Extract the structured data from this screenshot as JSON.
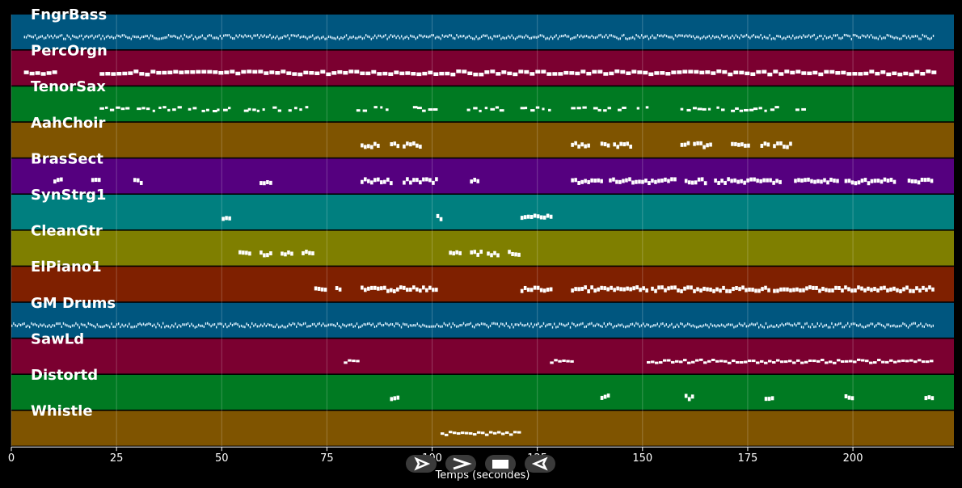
{
  "chart_data": {
    "type": "piano-roll",
    "xlabel": "Temps (secondes)",
    "xlim": [
      0,
      224
    ],
    "x_ticks": [
      0,
      25,
      50,
      75,
      100,
      125,
      150,
      175,
      200
    ],
    "grid": true,
    "tracks": [
      {
        "name": "FngrBass",
        "color": "#00567f",
        "notes": "dense",
        "segments": [
          [
            3,
            219
          ]
        ]
      },
      {
        "name": "PercOrgn",
        "color": "#7b0030",
        "notes": "long",
        "segments": [
          [
            3,
            10
          ],
          [
            21,
            219
          ]
        ]
      },
      {
        "name": "TenorSax",
        "color": "#007a22",
        "notes": "sparse",
        "segments": [
          [
            21,
            71
          ],
          [
            82,
            101
          ],
          [
            103,
            128
          ],
          [
            133,
            151
          ],
          [
            159,
            189
          ]
        ]
      },
      {
        "name": "AahChoir",
        "color": "#7f5400",
        "notes": "chunk",
        "segments": [
          [
            83,
            87
          ],
          [
            90,
            92
          ],
          [
            93,
            97
          ],
          [
            133,
            137
          ],
          [
            140,
            142
          ],
          [
            143,
            147
          ],
          [
            159,
            161
          ],
          [
            162,
            166
          ],
          [
            171,
            175
          ],
          [
            178,
            180
          ],
          [
            181,
            185
          ]
        ]
      },
      {
        "name": "BrasSect",
        "color": "#55007f",
        "notes": "chunk",
        "segments": [
          [
            10,
            12
          ],
          [
            19,
            21
          ],
          [
            29,
            31
          ],
          [
            59,
            62
          ],
          [
            83,
            90
          ],
          [
            93,
            101
          ],
          [
            109,
            111
          ],
          [
            133,
            140
          ],
          [
            142,
            158
          ],
          [
            160,
            165
          ],
          [
            167,
            183
          ],
          [
            186,
            196
          ],
          [
            198,
            210
          ],
          [
            213,
            219
          ]
        ]
      },
      {
        "name": "SynStrg1",
        "color": "#007f7f",
        "notes": "chunk",
        "segments": [
          [
            50,
            52
          ],
          [
            101,
            102
          ],
          [
            121,
            128
          ]
        ]
      },
      {
        "name": "CleanGtr",
        "color": "#7f7f00",
        "notes": "chunk",
        "segments": [
          [
            54,
            57
          ],
          [
            59,
            62
          ],
          [
            64,
            67
          ],
          [
            69,
            72
          ],
          [
            104,
            107
          ],
          [
            109,
            112
          ],
          [
            113,
            116
          ],
          [
            118,
            121
          ]
        ]
      },
      {
        "name": "ElPiano1",
        "color": "#7f2000",
        "notes": "chunk",
        "segments": [
          [
            72,
            75
          ],
          [
            77,
            78
          ],
          [
            83,
            101
          ],
          [
            121,
            128
          ],
          [
            133,
            151
          ],
          [
            152,
            180
          ],
          [
            181,
            219
          ]
        ]
      },
      {
        "name": "GM Drums",
        "color": "#00567f",
        "notes": "dense",
        "segments": [
          [
            0,
            219
          ]
        ]
      },
      {
        "name": "SawLd",
        "color": "#7b0030",
        "notes": "step",
        "segments": [
          [
            79,
            82
          ],
          [
            128,
            133
          ],
          [
            151,
            219
          ]
        ]
      },
      {
        "name": "Distortd",
        "color": "#007a22",
        "notes": "chunk",
        "segments": [
          [
            90,
            92
          ],
          [
            140,
            142
          ],
          [
            160,
            162
          ],
          [
            179,
            181
          ],
          [
            198,
            200
          ],
          [
            217,
            219
          ]
        ]
      },
      {
        "name": "Whistle",
        "color": "#7f5400",
        "notes": "step",
        "segments": [
          [
            102,
            121
          ]
        ]
      }
    ]
  },
  "controls": {
    "icons": [
      "play-icon",
      "forward-icon",
      "stop-icon",
      "rewind-icon"
    ]
  }
}
